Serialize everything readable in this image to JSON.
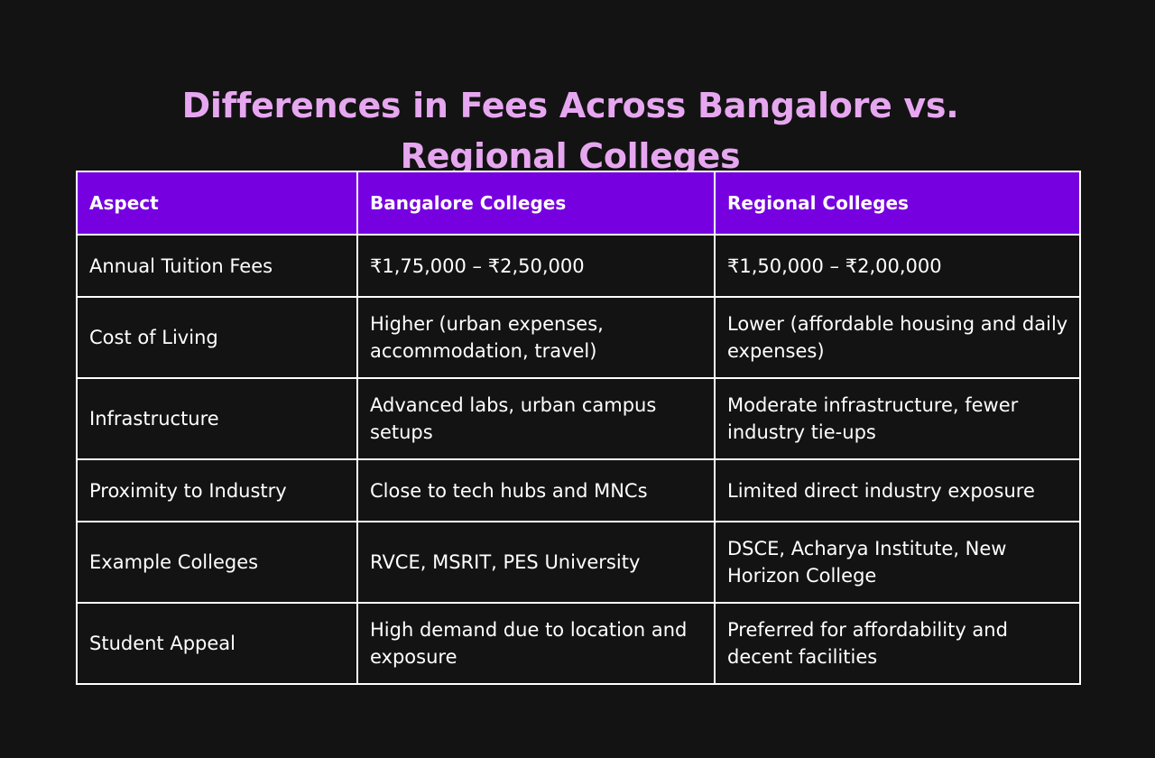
{
  "title": {
    "line1": "Differences in Fees Across Bangalore vs.",
    "line2": "Regional Colleges"
  },
  "table": {
    "headers": [
      "Aspect",
      "Bangalore Colleges",
      "Regional Colleges"
    ],
    "rows": [
      [
        "Annual Tuition Fees",
        "₹1,75,000 – ₹2,50,000",
        "₹1,50,000 – ₹2,00,000"
      ],
      [
        "Cost of Living",
        "Higher (urban expenses, accommodation, travel)",
        "Lower (affordable housing and daily expenses)"
      ],
      [
        "Infrastructure",
        "Advanced labs, urban campus setups",
        "Moderate infrastructure, fewer industry tie-ups"
      ],
      [
        "Proximity to Industry",
        "Close to tech hubs and MNCs",
        "Limited direct industry exposure"
      ],
      [
        "Example Colleges",
        "RVCE, MSRIT, PES University",
        "DSCE, Acharya Institute, New Horizon College"
      ],
      [
        "Student Appeal",
        "High demand due to location and exposure",
        "Preferred for affordability and decent facilities"
      ]
    ]
  },
  "colors": {
    "background": "#131313",
    "title": "#e7a7f0",
    "header_bg": "#7600e0",
    "text": "#ffffff",
    "border": "#ffffff"
  }
}
